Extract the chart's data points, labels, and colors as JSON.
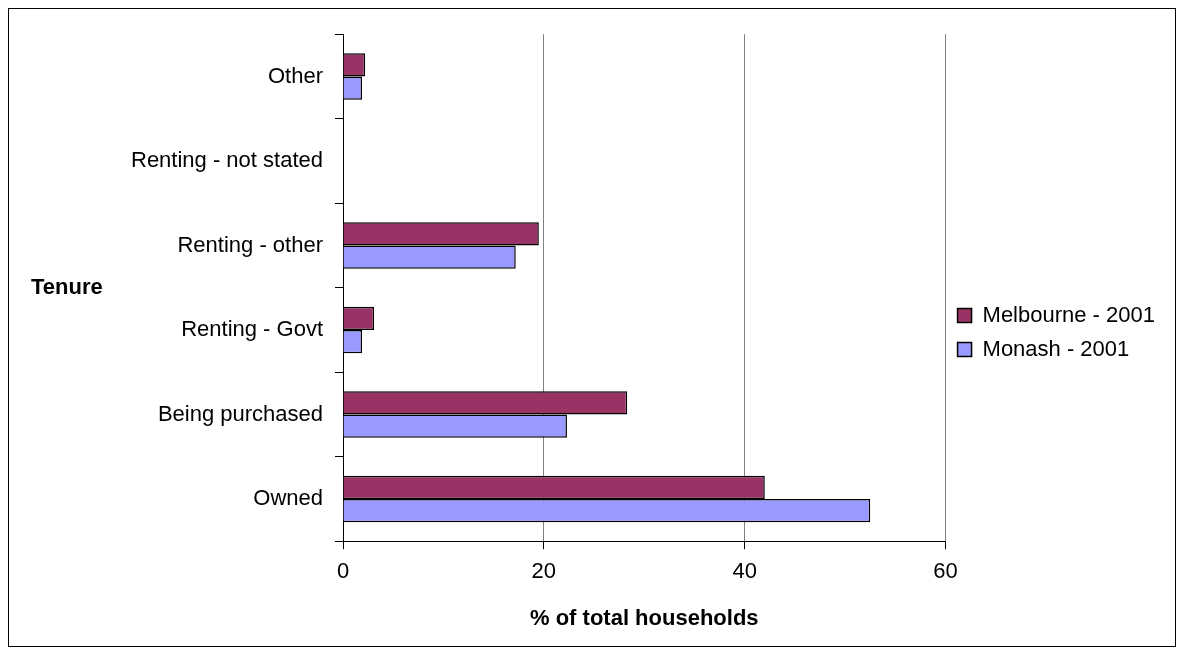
{
  "chart_data": {
    "type": "bar",
    "orientation": "horizontal",
    "xlabel": "% of total households",
    "ylabel": "Tenure",
    "categories": [
      "Other",
      "Renting - not stated",
      "Renting - other",
      "Renting - Govt",
      "Being purchased",
      "Owned"
    ],
    "series": [
      {
        "name": "Melbourne - 2001",
        "color": "#993366",
        "values": [
          2.2,
          null,
          19.5,
          3.1,
          28.3,
          42.0
        ]
      },
      {
        "name": "Monash - 2001",
        "color": "#9999ff",
        "values": [
          1.9,
          null,
          17.2,
          1.9,
          22.3,
          52.5
        ]
      }
    ],
    "xlim": [
      0,
      60
    ],
    "xticks": [
      0,
      20,
      40,
      60
    ],
    "grid": "x",
    "legend": "right"
  }
}
